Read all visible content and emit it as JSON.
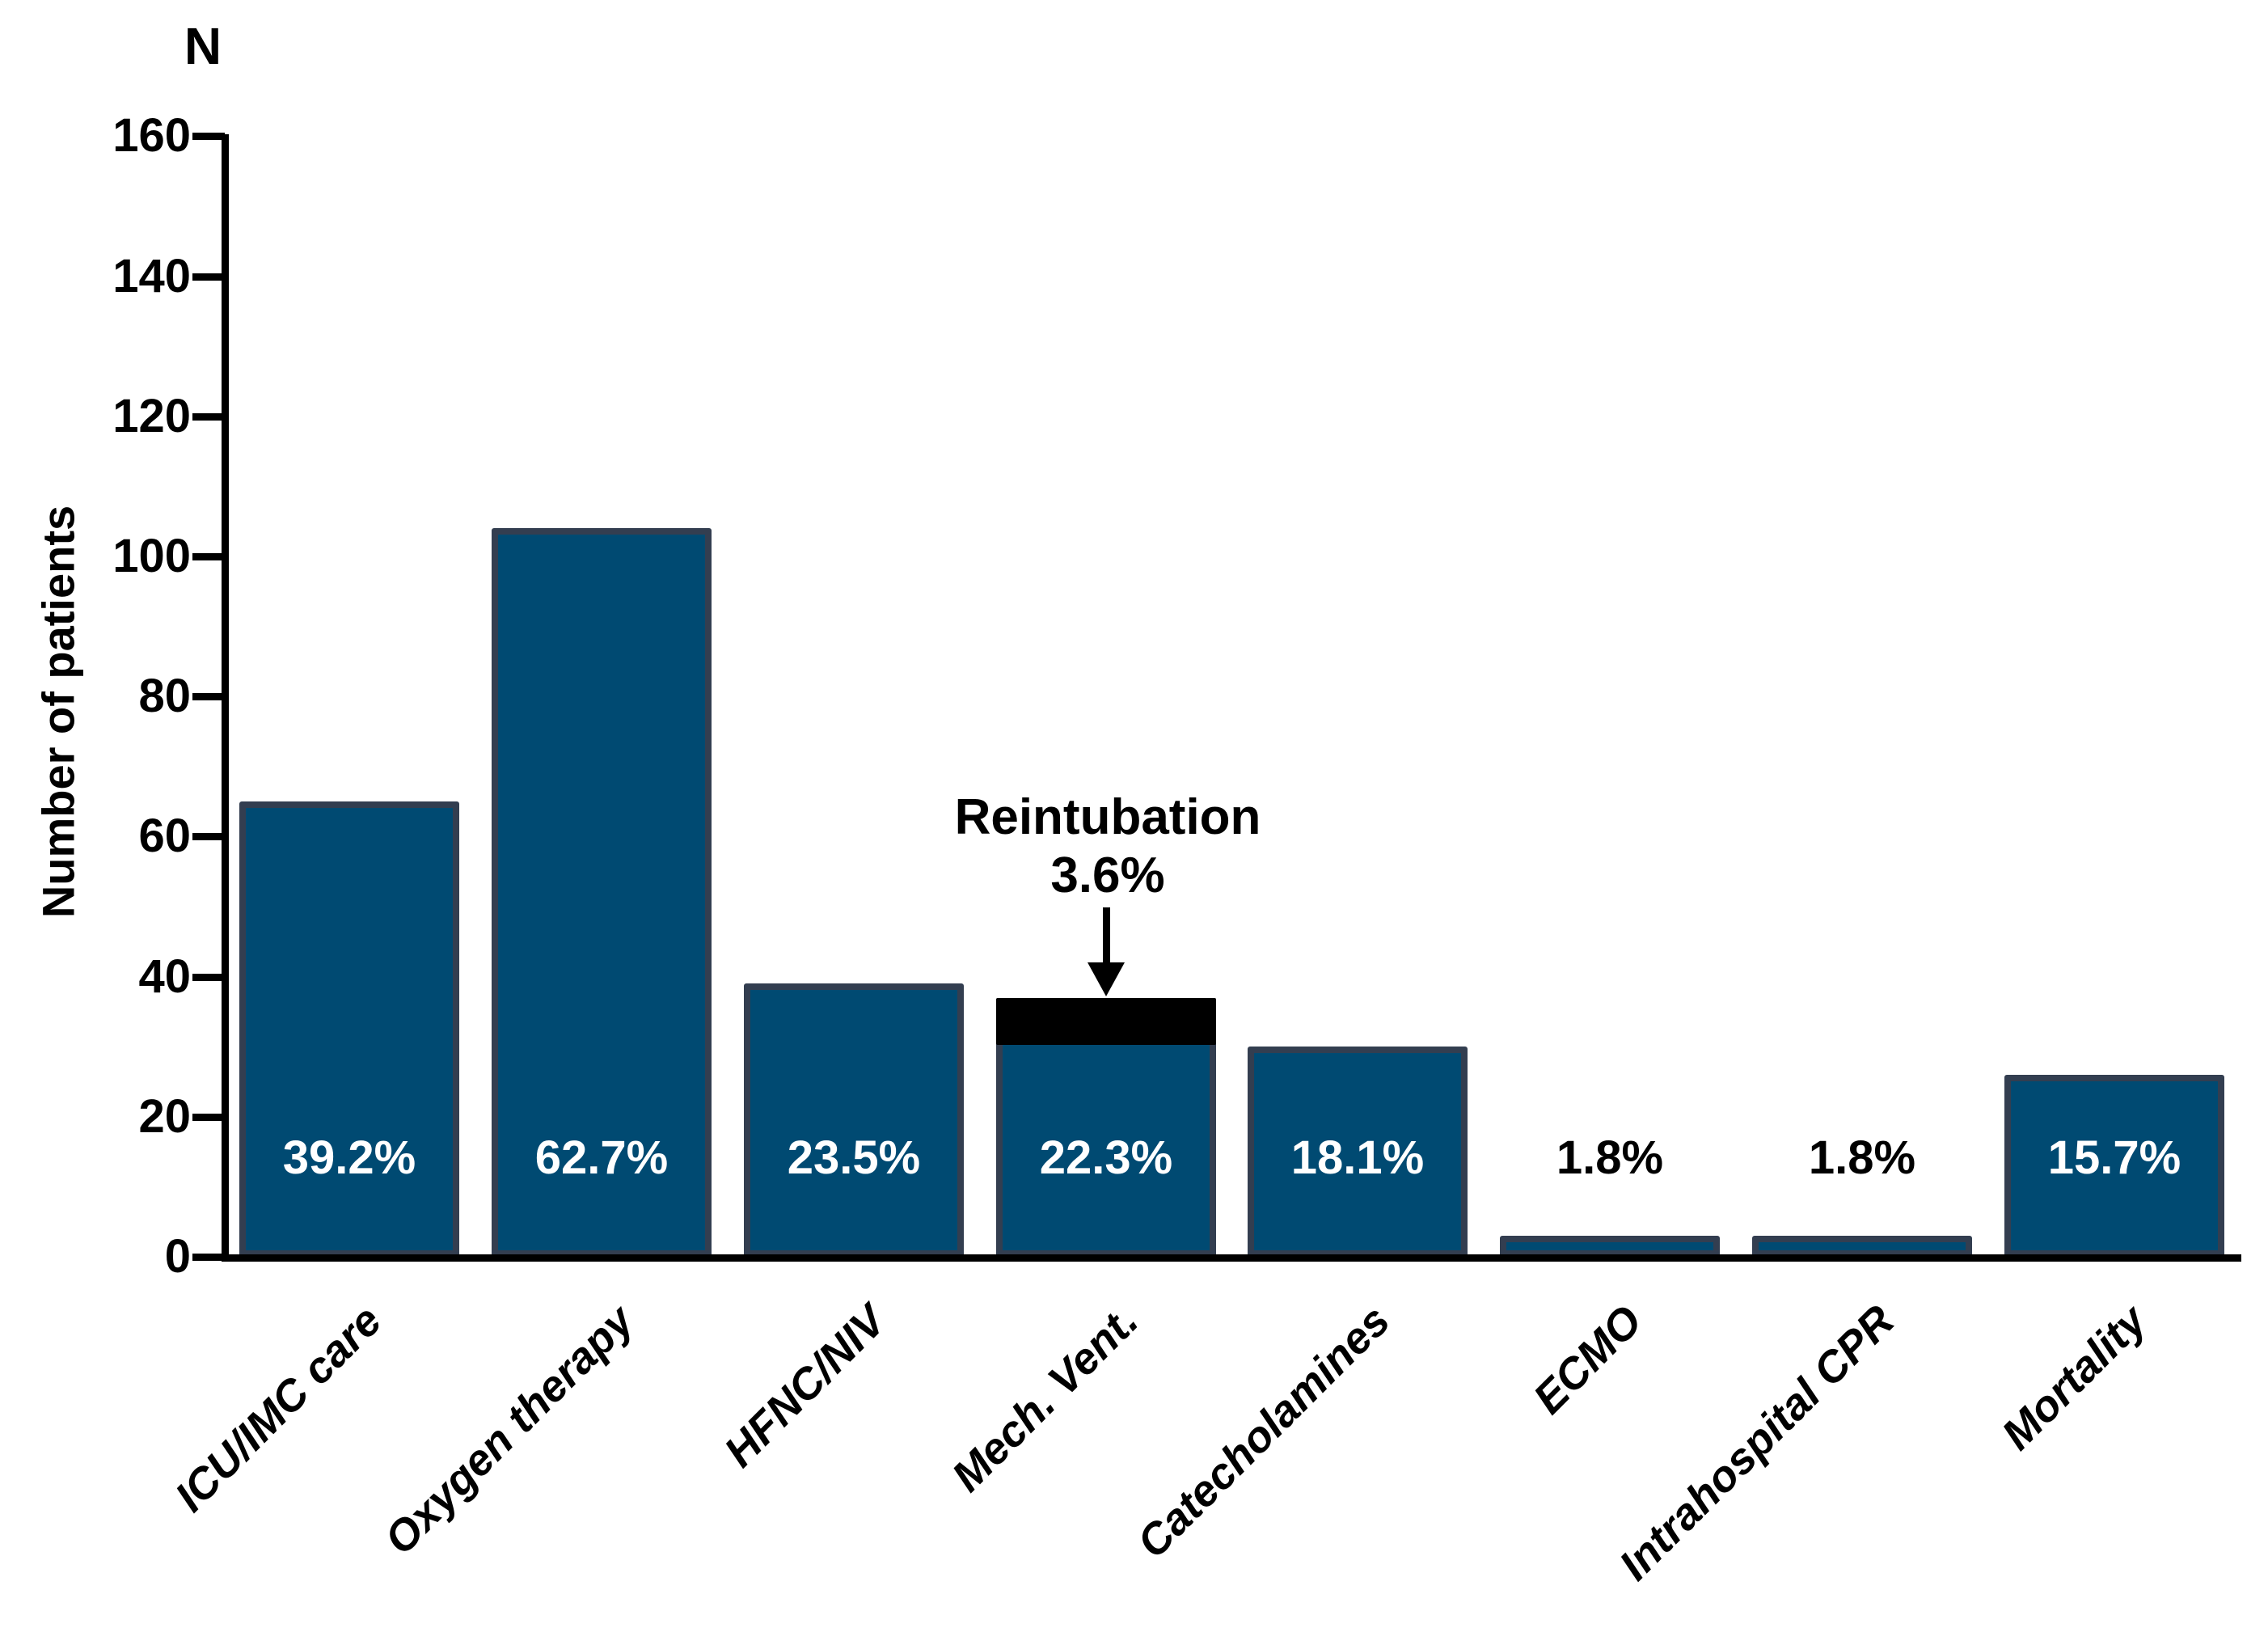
{
  "chart_data": {
    "type": "bar",
    "title": "N",
    "ylabel": "Number of patients",
    "xlabel": "",
    "ylim": [
      0,
      160
    ],
    "yticks": [
      0,
      20,
      40,
      60,
      80,
      100,
      120,
      140,
      160
    ],
    "grid": false,
    "legend": false,
    "categories": [
      "ICU/IMC care",
      "Oxygen therapy",
      "HFNC/NIV",
      "Mech. Vent.",
      "Catecholamines",
      "ECMO",
      "Intrahospital CPR",
      "Mortality"
    ],
    "bars": [
      {
        "category": "ICU/IMC care",
        "patients": 65,
        "percent": "39.2%",
        "percent_label_placement": "inside"
      },
      {
        "category": "Oxygen therapy",
        "patients": 104,
        "percent": "62.7%",
        "percent_label_placement": "inside"
      },
      {
        "category": "HFNC/NIV",
        "patients": 39,
        "percent": "23.5%",
        "percent_label_placement": "inside"
      },
      {
        "category": "Mech. Vent.",
        "patients": 37,
        "percent": "22.3%",
        "percent_label_placement": "inside",
        "stack": {
          "name": "Reintubation",
          "patients": 6,
          "percent": "3.6%"
        }
      },
      {
        "category": "Catecholamines",
        "patients": 30,
        "percent": "18.1%",
        "percent_label_placement": "inside"
      },
      {
        "category": "ECMO",
        "patients": 3,
        "percent": "1.8%",
        "percent_label_placement": "above"
      },
      {
        "category": "Intrahospital CPR",
        "patients": 3,
        "percent": "1.8%",
        "percent_label_placement": "above"
      },
      {
        "category": "Mortality",
        "patients": 26,
        "percent": "15.7%",
        "percent_label_placement": "inside"
      }
    ],
    "annotation": {
      "line1": "Reintubation",
      "line2": "3.6%",
      "target_category": "Mech. Vent."
    },
    "colors": {
      "bar_fill": "#004A72",
      "bar_border": "#333E50",
      "stack_fill": "#000000",
      "label_inside": "#FFFFFF",
      "label_above": "#000000",
      "axis": "#000000",
      "background": "#FFFFFF"
    }
  }
}
